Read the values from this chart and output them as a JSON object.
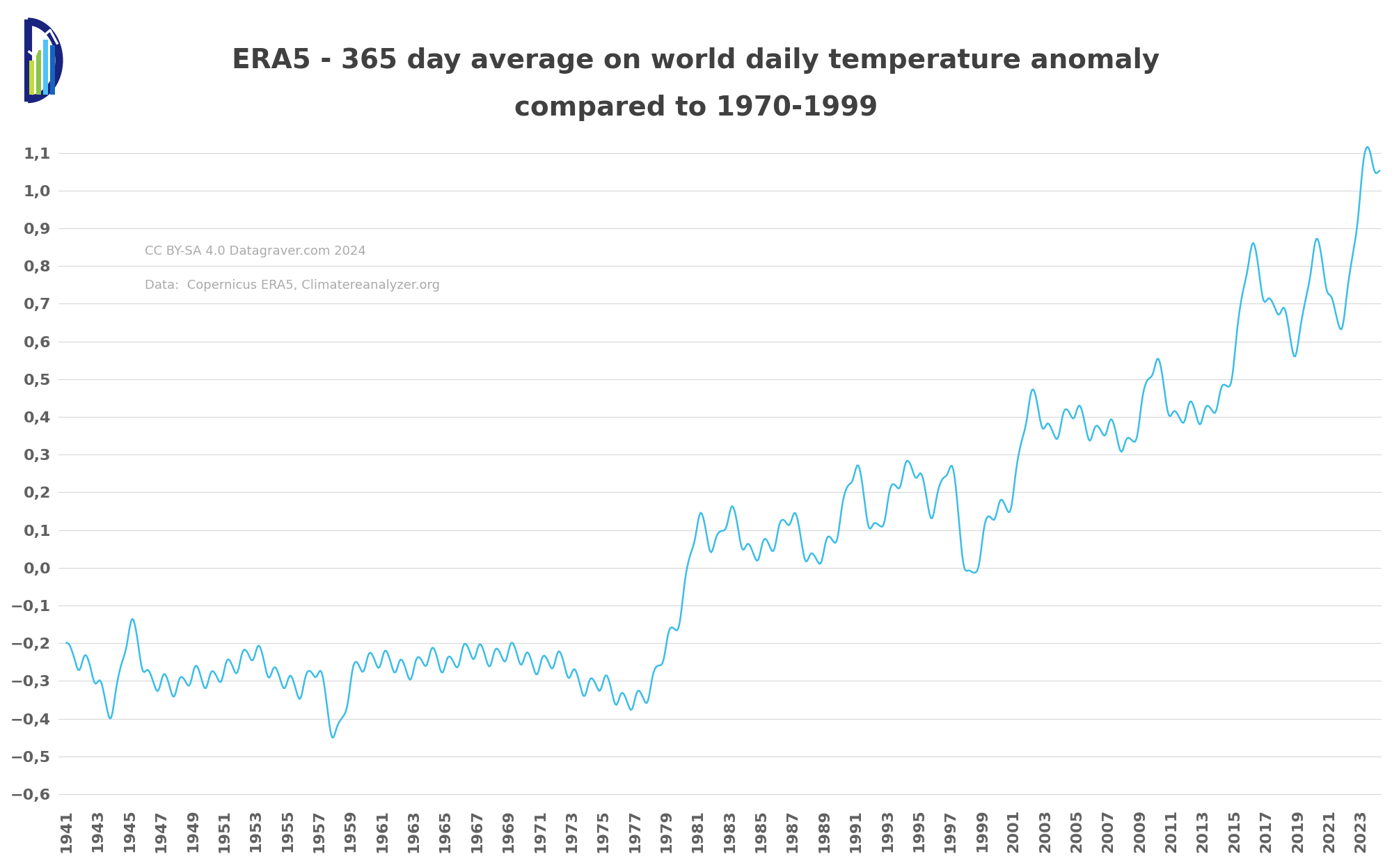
{
  "title_line1": "ERA5 - 365 day average on world daily temperature anomaly",
  "title_line2": "compared to 1970-1999",
  "title_color": "#404040",
  "title_fontsize": 28,
  "line_color": "#3bbde8",
  "line_width": 1.8,
  "bg_color": "#ffffff",
  "grid_color": "#d8d8d8",
  "axis_color": "#888888",
  "tick_color": "#606060",
  "tick_fontsize": 16,
  "watermark_line1": "CC BY-SA 4.0 Datagraver.com 2024",
  "watermark_line2": "Data:  Copernicus ERA5, Climatereanalyzer.org",
  "watermark_color": "#aaaaaa",
  "watermark_fontsize": 13,
  "ylim": [
    -0.62,
    1.18
  ],
  "yticks": [
    -0.6,
    -0.5,
    -0.4,
    -0.3,
    -0.2,
    -0.1,
    0.0,
    0.1,
    0.2,
    0.3,
    0.4,
    0.5,
    0.6,
    0.7,
    0.8,
    0.9,
    1.0,
    1.1
  ],
  "year_start": 1941,
  "year_end": 2024
}
